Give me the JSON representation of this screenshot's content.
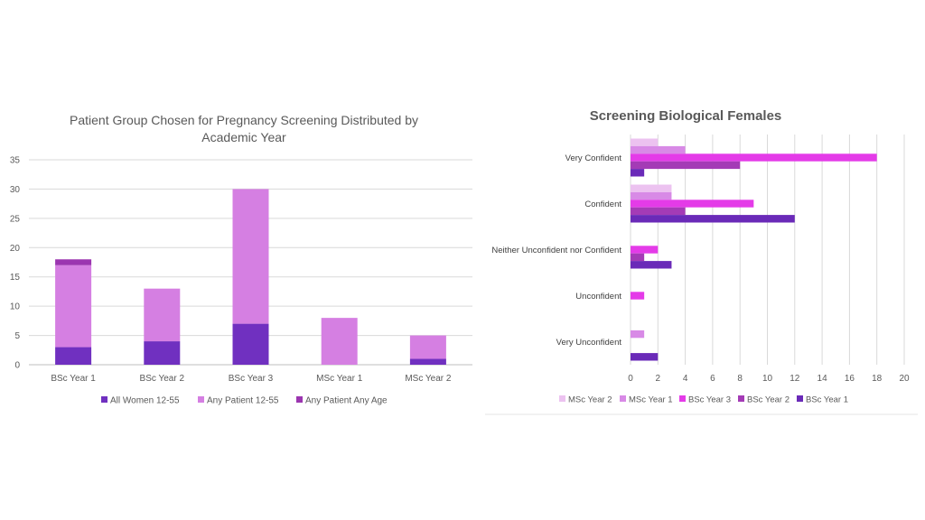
{
  "chart_data": [
    {
      "type": "bar",
      "stacked": true,
      "orientation": "vertical",
      "title": "Patient Group Chosen for Pregnancy Screening Distributed by Academic Year",
      "title_lines": [
        "Patient Group Chosen for Pregnancy Screening Distributed by",
        "Academic Year"
      ],
      "categories": [
        "BSc Year 1",
        "BSc Year 2",
        "BSc Year 3",
        "MSc Year 1",
        "MSc Year 2"
      ],
      "series": [
        {
          "name": "All Women 12-55",
          "color": "#7030c0",
          "values": [
            3,
            4,
            7,
            0,
            1
          ]
        },
        {
          "name": "Any Patient 12-55",
          "color": "#d57fe2",
          "values": [
            14,
            9,
            23,
            8,
            4
          ]
        },
        {
          "name": "Any Patient Any Age",
          "color": "#9b35b0",
          "values": [
            1,
            0,
            0,
            0,
            0
          ]
        }
      ],
      "ylim": [
        0,
        35
      ],
      "yticks": [
        "0",
        "5",
        "10",
        "15",
        "20",
        "25",
        "30",
        "35"
      ],
      "grid": true,
      "legend": "bottom"
    },
    {
      "type": "bar",
      "orientation": "horizontal",
      "title": "Screening Biological Females",
      "categories": [
        "Very Confident",
        "Confident",
        "Neither Unconfident nor Confident",
        "Unconfident",
        "Very Unconfident"
      ],
      "series": [
        {
          "name": "MSc Year 2",
          "color": "#ecc2f0",
          "values": [
            2,
            3,
            0,
            0,
            0
          ]
        },
        {
          "name": "MSc Year 1",
          "color": "#d88ae6",
          "values": [
            4,
            3,
            0,
            0,
            1
          ]
        },
        {
          "name": "BSc Year 3",
          "color": "#e43be8",
          "values": [
            18,
            9,
            2,
            1,
            0
          ]
        },
        {
          "name": "BSc Year 2",
          "color": "#a43bb6",
          "values": [
            8,
            4,
            1,
            0,
            0
          ]
        },
        {
          "name": "BSc Year 1",
          "color": "#6a2ab8",
          "values": [
            1,
            12,
            3,
            0,
            2
          ]
        }
      ],
      "xlim": [
        0,
        20
      ],
      "xticks": [
        "0",
        "2",
        "4",
        "6",
        "8",
        "10",
        "12",
        "14",
        "16",
        "18",
        "20"
      ],
      "grid": true,
      "legend": "bottom"
    }
  ]
}
